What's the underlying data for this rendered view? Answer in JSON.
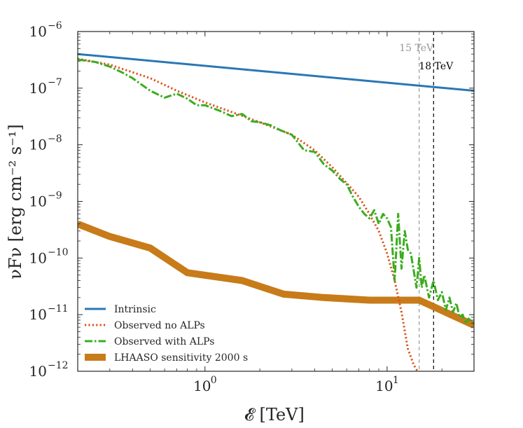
{
  "chart_data": {
    "type": "line",
    "xscale": "log",
    "yscale": "log",
    "xlim": [
      0.2,
      30
    ],
    "ylim": [
      1e-12,
      1e-06
    ],
    "xlabel": "𝓔 [TeV]",
    "ylabel": "νFν [erg cm⁻² s⁻¹]",
    "x_ticks": [
      {
        "value": 1,
        "base": "10",
        "exp": "0"
      },
      {
        "value": 10,
        "base": "10",
        "exp": "1"
      }
    ],
    "y_ticks": [
      {
        "value": 1e-06,
        "base": "10",
        "exp": "−6"
      },
      {
        "value": 1e-07,
        "base": "10",
        "exp": "−7"
      },
      {
        "value": 1e-08,
        "base": "10",
        "exp": "−8"
      },
      {
        "value": 1e-09,
        "base": "10",
        "exp": "−9"
      },
      {
        "value": 1e-10,
        "base": "10",
        "exp": "−10"
      },
      {
        "value": 1e-11,
        "base": "10",
        "exp": "−11"
      },
      {
        "value": 1e-12,
        "base": "10",
        "exp": "−12"
      }
    ],
    "grid": false,
    "legend_position": "bottom-left",
    "series": [
      {
        "name": "Intrinsic",
        "color": "#2a77b4",
        "style": "solid",
        "x": [
          0.2,
          30
        ],
        "y": [
          4e-07,
          9e-08
        ]
      },
      {
        "name": "Observed no ALPs",
        "color": "#d95319",
        "style": "dotted",
        "x": [
          0.2,
          0.3,
          0.5,
          0.7,
          1.0,
          1.5,
          2.0,
          3.0,
          4.0,
          5.0,
          6.0,
          7.0,
          8.0,
          9.0,
          10.0,
          11.0,
          12.0,
          13.0,
          14.0,
          14.7
        ],
        "y": [
          3.3e-07,
          2.6e-07,
          1.5e-07,
          9e-08,
          5.6e-08,
          3.5e-08,
          2.5e-08,
          1.5e-08,
          8e-09,
          4e-09,
          2.1e-09,
          1.2e-09,
          6e-10,
          3e-10,
          1.2e-10,
          4e-11,
          1.1e-11,
          2.5e-12,
          1.3e-12,
          1e-12
        ]
      },
      {
        "name": "Observed with ALPs",
        "color": "#3aad1e",
        "style": "dashdot",
        "x": [
          0.2,
          0.25,
          0.3,
          0.35,
          0.4,
          0.5,
          0.6,
          0.7,
          0.8,
          0.9,
          1.0,
          1.2,
          1.4,
          1.6,
          1.8,
          2.0,
          2.3,
          2.6,
          3.0,
          3.5,
          4.0,
          4.5,
          5.0,
          5.5,
          6.0,
          6.5,
          7.0,
          7.5,
          8.0,
          8.5,
          9.0,
          9.5,
          10.0,
          10.5,
          11.0,
          11.5,
          12.0,
          12.5,
          13.0,
          13.5,
          14.0,
          14.5,
          15.0,
          15.5,
          16.0,
          17.0,
          18.0,
          19.0,
          20.0,
          21.0,
          22.0,
          23.0,
          24.0,
          25.0,
          26.0,
          27.0,
          28.0,
          30.0
        ],
        "y": [
          3.2e-07,
          2.9e-07,
          2.4e-07,
          1.9e-07,
          1.5e-07,
          9e-08,
          6.8e-08,
          8e-08,
          6.5e-08,
          5e-08,
          5e-08,
          4e-08,
          3.2e-08,
          3.5e-08,
          2.6e-08,
          2.5e-08,
          2.2e-08,
          1.8e-08,
          1.5e-08,
          8e-09,
          7.5e-09,
          4.5e-09,
          3.5e-09,
          2.5e-09,
          2e-09,
          1.2e-09,
          8e-10,
          6e-10,
          5e-10,
          7e-10,
          4e-10,
          6e-10,
          5e-10,
          3.5e-10,
          4e-11,
          6e-10,
          6.5e-11,
          3e-10,
          1.4e-10,
          1.2e-10,
          6e-11,
          3e-11,
          1e-10,
          3e-11,
          5e-11,
          2e-11,
          4e-11,
          1.8e-11,
          2.5e-11,
          1.2e-11,
          2e-11,
          1.1e-11,
          1.6e-11,
          9e-12,
          1e-11,
          7e-12,
          8.5e-12,
          7e-12
        ]
      },
      {
        "name": "LHAASO sensitivity 2000 s",
        "color": "#c87b19",
        "style": "solid-thick",
        "x": [
          0.2,
          0.3,
          0.5,
          0.8,
          1.6,
          2.7,
          4.5,
          8.0,
          15.0,
          30.0
        ],
        "y": [
          4e-10,
          2.4e-10,
          1.5e-10,
          5.5e-11,
          4e-11,
          2.3e-11,
          2e-11,
          1.8e-11,
          1.8e-11,
          6.5e-12
        ]
      }
    ],
    "vlines": [
      {
        "x": 15,
        "label": "15 TeV",
        "color": "#999999"
      },
      {
        "x": 18,
        "label": "18 TeV",
        "color": "#000000"
      }
    ]
  }
}
